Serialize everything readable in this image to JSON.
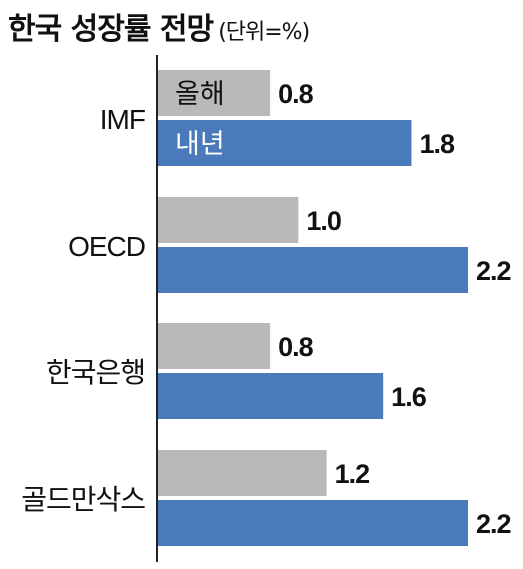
{
  "title": "한국 성장률 전망",
  "unit_note": "(단위=%)",
  "colors": {
    "this_year": "#b9b9b9",
    "next_year": "#4a7ab9",
    "axis": "#222222",
    "text": "#111111"
  },
  "chart_data": {
    "type": "bar",
    "orientation": "horizontal",
    "title": "한국 성장률 전망",
    "unit": "(단위=%)",
    "categories": [
      "IMF",
      "OECD",
      "한국은행",
      "골드만삭스"
    ],
    "series": [
      {
        "name": "올해",
        "values": [
          0.8,
          1.0,
          0.8,
          1.2
        ],
        "color": "#b9b9b9"
      },
      {
        "name": "내년",
        "values": [
          1.8,
          2.2,
          1.6,
          2.2
        ],
        "color": "#4a7ab9"
      }
    ],
    "value_labels": [
      [
        "0.8",
        "1.0",
        "0.8",
        "1.2"
      ],
      [
        "1.8",
        "2.2",
        "1.6",
        "2.2"
      ]
    ],
    "xlim": [
      0,
      2.2
    ],
    "legend": "inside-first-group",
    "grid": false
  }
}
